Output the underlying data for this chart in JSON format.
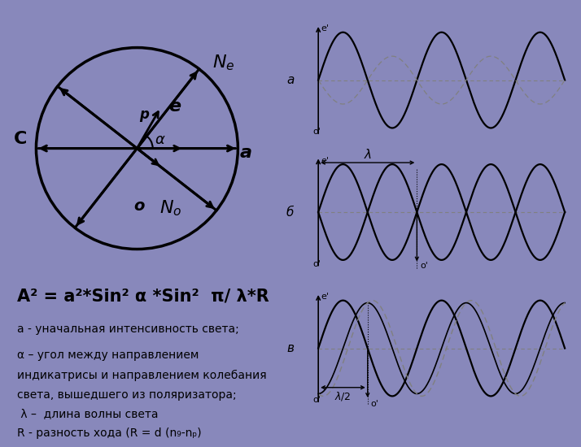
{
  "bg_color": "#8888bb",
  "left_panel_bg": "#ffffff",
  "right_panel_bg": "#ddddd0",
  "formula_bg": "#ccff00",
  "formula_text": "A² = a²*Sin² α *Sin²  π/ λ*R",
  "formula_color": "#000000",
  "desc_lines": [
    "a - уначальная интенсивность света;",
    "α – угол между направлением",
    "индикатрисы и направлением колебания",
    "света, вышедшего из поляризатора;",
    " λ –  длина волны света",
    "R - разность хода (R = d (n₉-nₚ)"
  ]
}
